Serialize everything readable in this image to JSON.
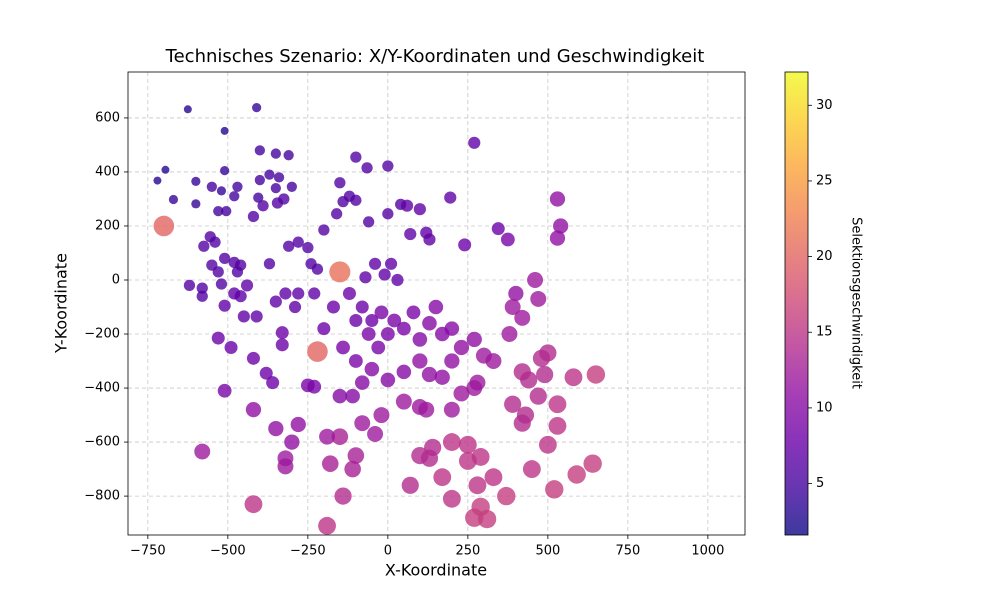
{
  "chart_data": {
    "type": "scatter",
    "title": "Technisches Szenario: X/Y-Koordinaten und Geschwindigkeit",
    "x_label": "X-Koordinate",
    "y_label": "Y-Koordinate",
    "colormap": "plasma",
    "alpha": 0.8,
    "grid": true,
    "xlim": [
      -812,
      1116
    ],
    "ylim": [
      -944,
      770
    ],
    "xticks": [
      {
        "value": -750,
        "label": "−750"
      },
      {
        "value": -500,
        "label": "−500"
      },
      {
        "value": -250,
        "label": "−250"
      },
      0,
      250,
      500,
      750,
      1000
    ],
    "yticks": [
      {
        "value": -800,
        "label": "−800"
      },
      {
        "value": -600,
        "label": "−600"
      },
      {
        "value": -400,
        "label": "−400"
      },
      {
        "value": -200,
        "label": "−200"
      },
      0,
      200,
      400,
      600
    ],
    "colorbar": {
      "label": "Selektionsgeschwindigkeit",
      "lim": [
        1.6,
        32.2
      ],
      "ticks": [
        5,
        10,
        15,
        20,
        25,
        30
      ]
    },
    "x": [
      -625,
      -410,
      -510,
      -695,
      -720,
      -670,
      -600,
      -600,
      -550,
      -510,
      -520,
      -470,
      -480,
      -505,
      -530,
      -400,
      -350,
      -310,
      -370,
      -340,
      -350,
      -400,
      -300,
      -325,
      -345,
      -405,
      -420,
      -390,
      -575,
      -555,
      -540,
      -510,
      -480,
      -460,
      -470,
      -550,
      -530,
      -580,
      -620,
      -580,
      -520,
      -480,
      -460,
      -440,
      -510,
      -450,
      -410,
      -490,
      -530,
      -510,
      -420,
      -380,
      -360,
      -330,
      -330,
      -370,
      -350,
      -320,
      -280,
      -290,
      -230,
      -250,
      -230,
      -310,
      -280,
      -250,
      -200,
      -240,
      -220,
      -160,
      -140,
      -120,
      -100,
      -150,
      -100,
      -65,
      0,
      -60,
      0,
      40,
      60,
      100,
      195,
      270,
      70,
      120,
      130,
      240,
      345,
      375,
      530,
      540,
      530,
      -150,
      -220,
      -700,
      -120,
      -80,
      -50,
      -20,
      0,
      20,
      50,
      80,
      100,
      130,
      150,
      170,
      200,
      -100,
      -60,
      -30,
      -10,
      10,
      30,
      -40,
      -70,
      -170,
      -200,
      -140,
      -100,
      -50,
      0,
      50,
      100,
      130,
      170,
      200,
      230,
      270,
      300,
      330,
      380,
      400,
      420,
      460,
      470,
      390,
      480,
      500,
      440,
      420,
      470,
      490,
      390,
      430,
      420,
      530,
      500,
      530,
      450,
      580,
      650,
      640,
      590,
      520,
      370,
      330,
      280,
      270,
      310,
      290,
      200,
      290,
      250,
      250,
      200,
      170,
      140,
      130,
      100,
      70,
      -20,
      50,
      100,
      120,
      200,
      270,
      280,
      230,
      -80,
      -100,
      -40,
      -110,
      -150,
      -190,
      -180,
      -140,
      -190,
      -420,
      -420,
      -350,
      -280,
      -300,
      -320,
      -320,
      -580,
      -150,
      -110,
      -80
    ],
    "values": [
      632,
      638,
      552,
      408,
      368,
      298,
      365,
      282,
      345,
      405,
      330,
      345,
      310,
      255,
      255,
      480,
      468,
      462,
      390,
      380,
      340,
      370,
      345,
      300,
      285,
      305,
      235,
      275,
      125,
      160,
      140,
      80,
      65,
      55,
      30,
      55,
      30,
      -30,
      -20,
      -60,
      -15,
      -50,
      -60,
      -20,
      -95,
      -135,
      -135,
      -250,
      -215,
      -410,
      -290,
      -345,
      -380,
      -195,
      -240,
      60,
      -80,
      -50,
      -50,
      -100,
      -50,
      -390,
      -395,
      125,
      140,
      120,
      185,
      60,
      40,
      245,
      290,
      310,
      295,
      360,
      455,
      415,
      422,
      215,
      245,
      280,
      275,
      262,
      305,
      508,
      170,
      175,
      150,
      130,
      190,
      150,
      300,
      200,
      155,
      30,
      -265,
      200,
      -50,
      -100,
      -150,
      -120,
      -200,
      -150,
      -180,
      -120,
      -220,
      -160,
      -100,
      -200,
      -180,
      -150,
      -200,
      -250,
      20,
      60,
      0,
      60,
      10,
      -100,
      -180,
      -250,
      -300,
      -330,
      -370,
      -340,
      -300,
      -350,
      -360,
      -300,
      -250,
      -220,
      -280,
      -300,
      -200,
      -50,
      -140,
      0,
      -70,
      -100,
      -290,
      -270,
      -370,
      -340,
      -430,
      -350,
      -460,
      -500,
      -530,
      -460,
      -610,
      -540,
      -700,
      -360,
      -350,
      -680,
      -720,
      -775,
      -800,
      -730,
      -760,
      -880,
      -885,
      -840,
      -810,
      -655,
      -670,
      -610,
      -600,
      -730,
      -620,
      -660,
      -650,
      -760,
      -500,
      -450,
      -470,
      -480,
      -480,
      -400,
      -380,
      -420,
      -530,
      -650,
      -570,
      -700,
      -580,
      -580,
      -680,
      -800,
      -910,
      -830,
      -480,
      -550,
      -535,
      -600,
      -660,
      -690,
      -635,
      -430,
      -430,
      -380
    ],
    "color_values": [
      3,
      4,
      3,
      3,
      3,
      4,
      4,
      4,
      5,
      4,
      4,
      5,
      5,
      5,
      5,
      5,
      5,
      5,
      5,
      5,
      5,
      5,
      5,
      6,
      6,
      5,
      6,
      6,
      6,
      6,
      6,
      6,
      6,
      6,
      6,
      6,
      6,
      6,
      6,
      6,
      6,
      7,
      7,
      7,
      7,
      7,
      7,
      8,
      8,
      9,
      8,
      8,
      8,
      8,
      8,
      6,
      7,
      7,
      7,
      7,
      7,
      9,
      9,
      6,
      6,
      6,
      6,
      6,
      6,
      6,
      6,
      6,
      6,
      6,
      6,
      6,
      6,
      6,
      6,
      6,
      7,
      7,
      7,
      7,
      7,
      7,
      7,
      8,
      8,
      9,
      11,
      11,
      11,
      21,
      20,
      20,
      8,
      8,
      8,
      9,
      9,
      9,
      9,
      9,
      10,
      10,
      10,
      10,
      10,
      8,
      9,
      9,
      7,
      7,
      7,
      7,
      7,
      8,
      8,
      9,
      9,
      10,
      10,
      10,
      11,
      11,
      11,
      11,
      11,
      11,
      12,
      12,
      12,
      11,
      12,
      12,
      12,
      12,
      14,
      14,
      14,
      14,
      14,
      14,
      14,
      14,
      14,
      15,
      15,
      15,
      15,
      15,
      16,
      16,
      16,
      16,
      16,
      15,
      15,
      16,
      16,
      16,
      15,
      15,
      15,
      15,
      15,
      15,
      14,
      14,
      14,
      14,
      12,
      12,
      12,
      12,
      12,
      12,
      12,
      12,
      12,
      13,
      12,
      13,
      13,
      12,
      13,
      14,
      15,
      15,
      11,
      11,
      11,
      11,
      12,
      12,
      12,
      10,
      10,
      10
    ]
  }
}
